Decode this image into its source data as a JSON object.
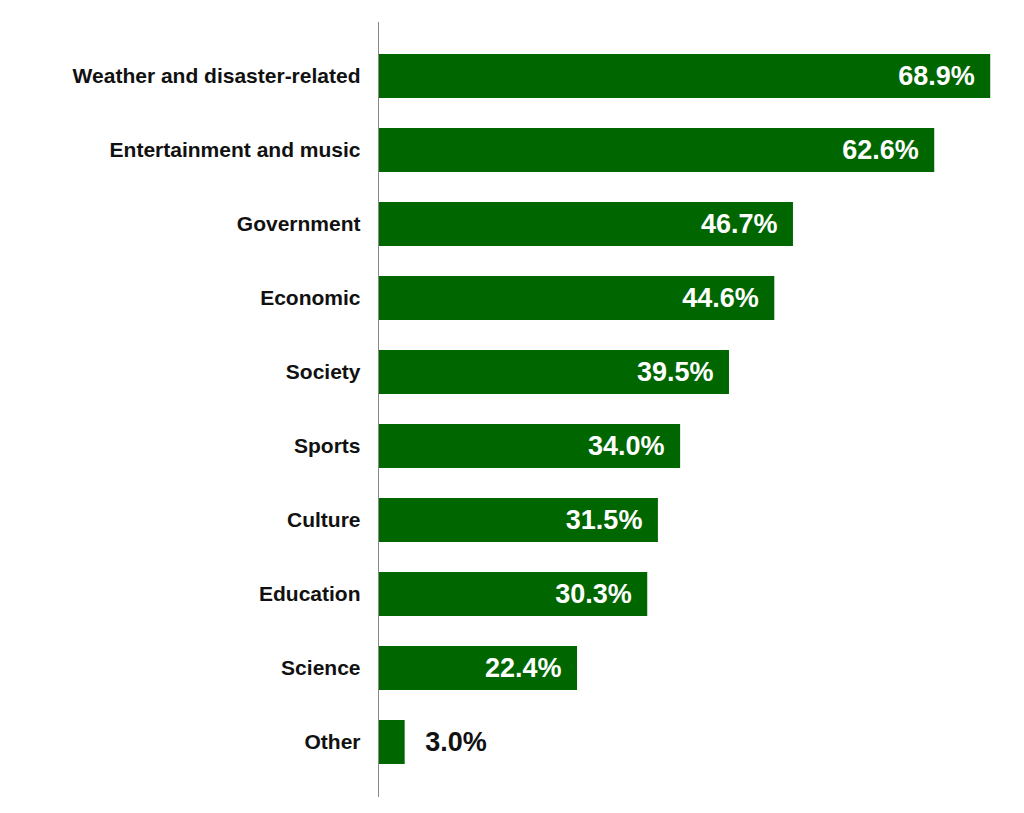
{
  "chart_data": {
    "type": "bar",
    "orientation": "horizontal",
    "categories": [
      "Weather and disaster-related",
      "Entertainment and music",
      "Government",
      "Economic",
      "Society",
      "Sports",
      "Culture",
      "Education",
      "Science",
      "Other"
    ],
    "values": [
      68.9,
      62.6,
      46.7,
      44.6,
      39.5,
      34.0,
      31.5,
      30.3,
      22.4,
      3.0
    ],
    "value_labels": [
      "68.9%",
      "62.6%",
      "46.7%",
      "44.6%",
      "39.5%",
      "34.0%",
      "31.5%",
      "30.3%",
      "22.4%",
      "3.0%"
    ],
    "color": "#006600",
    "xlim": [
      0,
      70
    ],
    "data_labels": true,
    "tick_labels": "y",
    "grid": false
  }
}
